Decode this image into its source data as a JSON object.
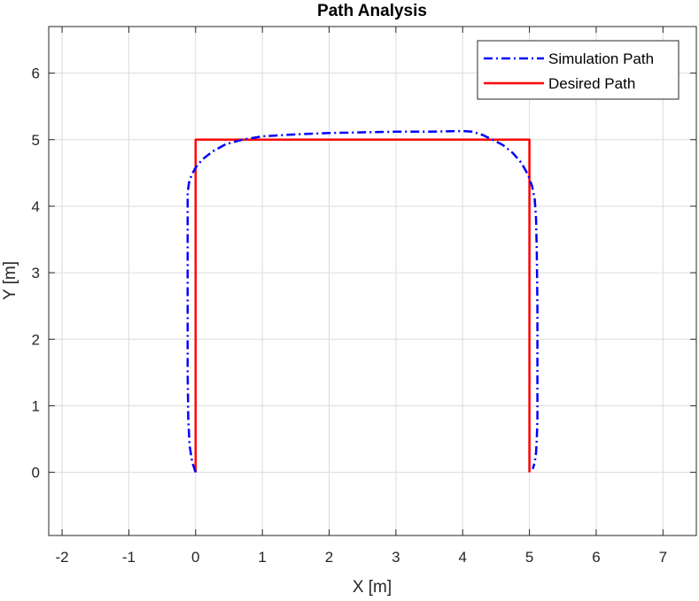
{
  "chart_data": {
    "type": "line",
    "title": "Path Analysis",
    "xlabel": "X [m]",
    "ylabel": "Y [m]",
    "xlim": [
      -2.2,
      7.5
    ],
    "ylim": [
      -0.95,
      6.7
    ],
    "xticks": [
      -2,
      -1,
      0,
      1,
      2,
      3,
      4,
      5,
      6,
      7
    ],
    "yticks": [
      0,
      1,
      2,
      3,
      4,
      5,
      6
    ],
    "grid": true,
    "legend_position": "top-right",
    "series": [
      {
        "name": "Simulation Path",
        "color": "#0000ff",
        "style": "dash-dot",
        "x": [
          0.0,
          -0.05,
          -0.09,
          -0.11,
          -0.12,
          -0.12,
          -0.12,
          -0.12,
          -0.12,
          -0.1,
          -0.06,
          0.0,
          0.1,
          0.25,
          0.45,
          0.7,
          1.0,
          1.5,
          2.0,
          2.5,
          3.0,
          3.5,
          4.0,
          4.15,
          4.3,
          4.45,
          4.6,
          4.75,
          4.88,
          4.98,
          5.04,
          5.08,
          5.1,
          5.11,
          5.12,
          5.12,
          5.12,
          5.11,
          5.1,
          5.08,
          5.05
        ],
        "y": [
          0.0,
          0.15,
          0.4,
          0.8,
          1.5,
          2.5,
          3.5,
          4.0,
          4.2,
          4.35,
          4.47,
          4.58,
          4.7,
          4.82,
          4.93,
          5.0,
          5.05,
          5.08,
          5.1,
          5.11,
          5.12,
          5.12,
          5.13,
          5.12,
          5.07,
          5.0,
          4.92,
          4.8,
          4.65,
          4.47,
          4.3,
          4.1,
          3.8,
          3.3,
          2.5,
          1.5,
          0.8,
          0.5,
          0.3,
          0.15,
          0.05
        ]
      },
      {
        "name": "Desired Path",
        "color": "#ff0000",
        "style": "solid",
        "x": [
          0,
          0,
          5,
          5
        ],
        "y": [
          0,
          5,
          5,
          0
        ]
      }
    ]
  }
}
